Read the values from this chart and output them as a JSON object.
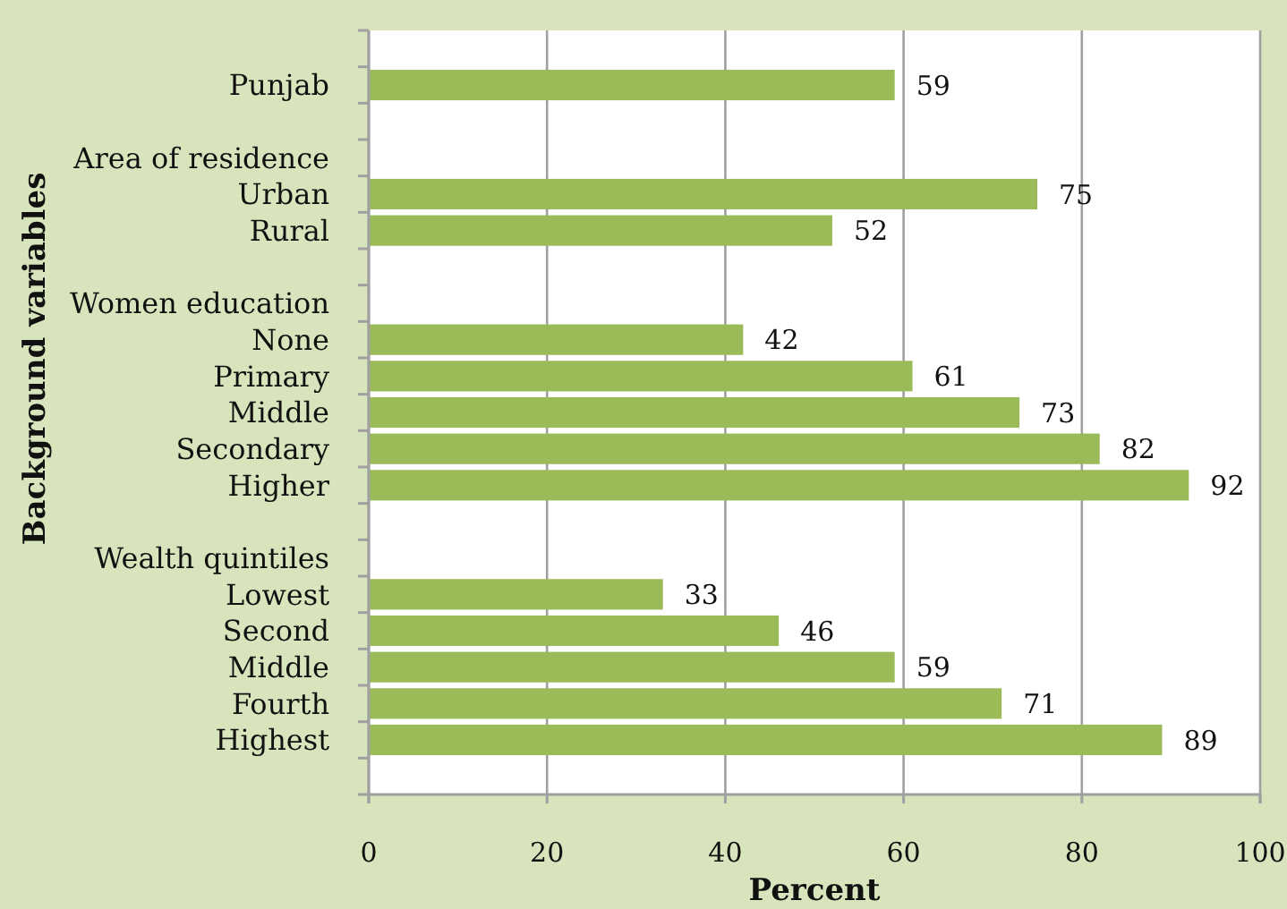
{
  "chart_data": {
    "type": "bar",
    "orientation": "horizontal",
    "categories": [
      null,
      "Punjab",
      null,
      "Area of residence",
      "Urban",
      "Rural",
      null,
      "Women education",
      "None",
      "Primary",
      "Middle",
      "Secondary",
      "Higher",
      null,
      "Wealth quintiles",
      "Lowest",
      "Second",
      "Middle",
      "Fourth",
      "Highest",
      null
    ],
    "values": [
      null,
      59,
      null,
      null,
      75,
      52,
      null,
      null,
      42,
      61,
      73,
      82,
      92,
      null,
      null,
      33,
      46,
      59,
      71,
      89,
      null
    ],
    "color": "#9bbb59",
    "data_labels": true,
    "xlim": [
      0,
      100
    ],
    "xticks": [
      0,
      20,
      40,
      60,
      80,
      100
    ],
    "grid": "x",
    "xlabel": "Percent",
    "ylabel": "Background variables"
  }
}
